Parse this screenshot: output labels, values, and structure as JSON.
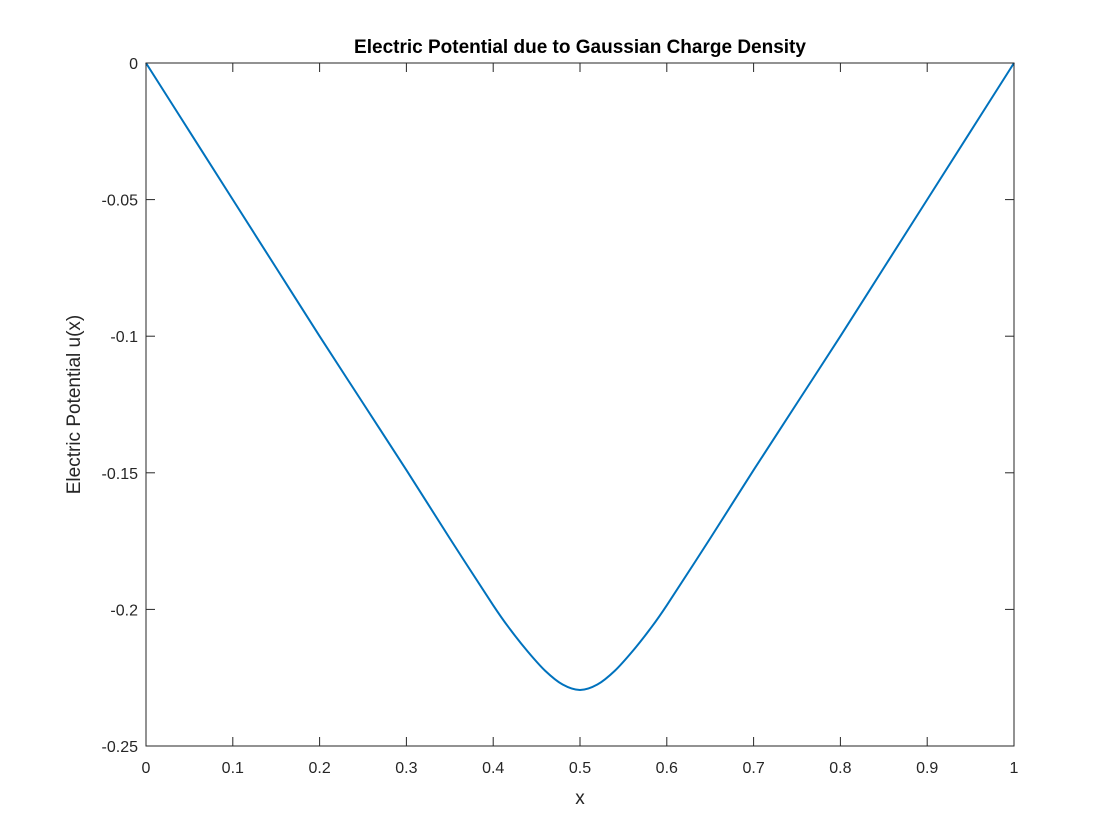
{
  "chart_data": {
    "type": "line",
    "title": "Electric Potential due to Gaussian Charge Density",
    "xlabel": "x",
    "ylabel": "Electric Potential u(x)",
    "xlim": [
      0,
      1
    ],
    "ylim": [
      -0.25,
      0
    ],
    "xticks": [
      0,
      0.1,
      0.2,
      0.3,
      0.4,
      0.5,
      0.6,
      0.7,
      0.8,
      0.9,
      1
    ],
    "xtick_labels": [
      "0",
      "0.1",
      "0.2",
      "0.3",
      "0.4",
      "0.5",
      "0.6",
      "0.7",
      "0.8",
      "0.9",
      "1"
    ],
    "yticks": [
      0,
      -0.05,
      -0.1,
      -0.15,
      -0.2,
      -0.25
    ],
    "ytick_labels": [
      "0",
      "-0.05",
      "-0.1",
      "-0.15",
      "-0.2",
      "-0.25"
    ],
    "grid": false,
    "line_color": "#0072BD",
    "series": [
      {
        "x": [
          0,
          0.05,
          0.1,
          0.15,
          0.2,
          0.25,
          0.3,
          0.35,
          0.4,
          0.42,
          0.44,
          0.46,
          0.48,
          0.5,
          0.52,
          0.54,
          0.56,
          0.58,
          0.6,
          0.65,
          0.7,
          0.75,
          0.8,
          0.85,
          0.9,
          0.95,
          1
        ],
        "y": [
          0,
          -0.025,
          -0.05,
          -0.075,
          -0.1,
          -0.1245,
          -0.149,
          -0.174,
          -0.1985,
          -0.2075,
          -0.2155,
          -0.2225,
          -0.2275,
          -0.2295,
          -0.2275,
          -0.2225,
          -0.2155,
          -0.2075,
          -0.1985,
          -0.174,
          -0.149,
          -0.1245,
          -0.1,
          -0.075,
          -0.05,
          -0.025,
          0
        ]
      }
    ]
  }
}
